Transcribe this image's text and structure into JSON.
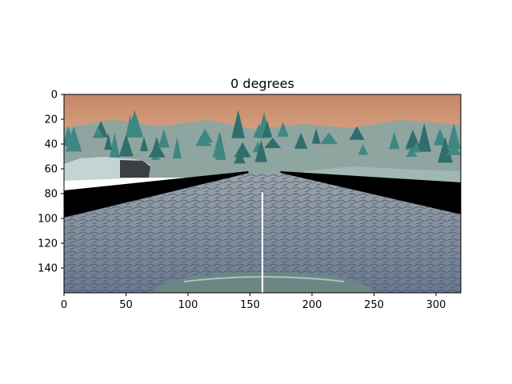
{
  "chart_data": {
    "type": "image",
    "title": "0 degrees",
    "xlabel": "",
    "ylabel": "",
    "xlim": [
      0,
      320
    ],
    "ylim": [
      160,
      0
    ],
    "x_ticks": [
      0,
      50,
      100,
      150,
      200,
      250,
      300
    ],
    "y_ticks": [
      0,
      20,
      40,
      60,
      80,
      100,
      120,
      140
    ],
    "grid": false,
    "steering_line": {
      "x": 160,
      "y_start": 160,
      "y_end": 79,
      "color": "#ffffff"
    }
  },
  "colors": {
    "sky_top": "#c98e6d",
    "sky_bottom": "#dfa98a",
    "road_far": "#8e9aa3",
    "road_near": "#6f7e92",
    "shoulder": "#000000",
    "tree": "#2f6e6c",
    "hood": "#6f8a8a"
  }
}
